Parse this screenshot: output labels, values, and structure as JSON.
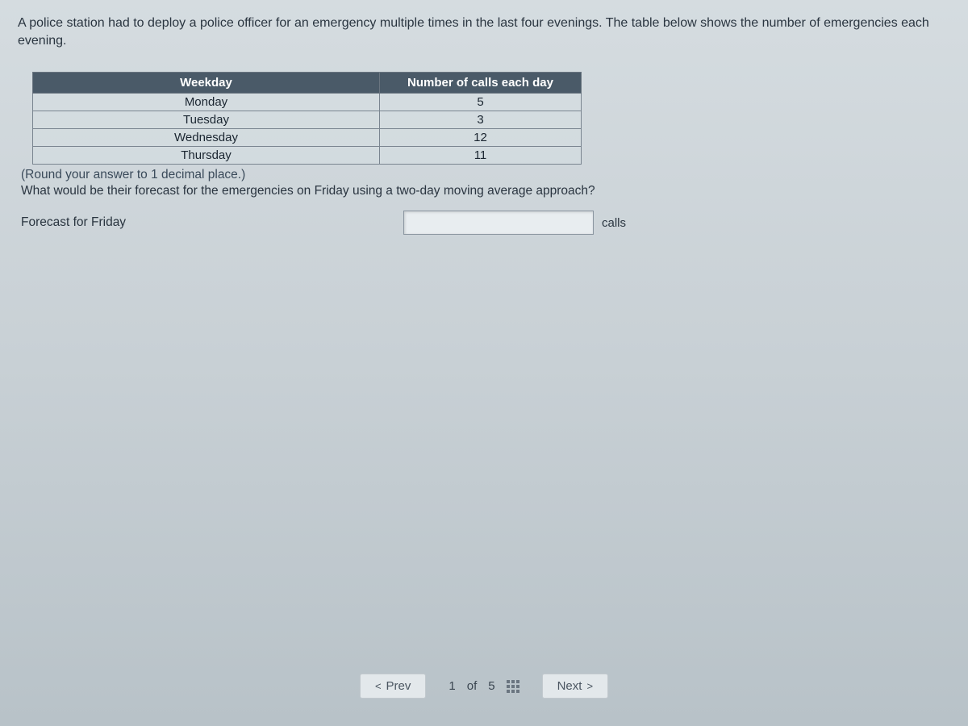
{
  "problem": {
    "intro": "A police station had to deploy a police officer for an emergency multiple times in the last four evenings. The table below shows the number of emergencies each evening."
  },
  "table": {
    "headers": {
      "weekday": "Weekday",
      "calls": "Number of calls each day"
    },
    "rows": [
      {
        "weekday": "Monday",
        "calls": "5"
      },
      {
        "weekday": "Tuesday",
        "calls": "3"
      },
      {
        "weekday": "Wednesday",
        "calls": "12"
      },
      {
        "weekday": "Thursday",
        "calls": "11"
      }
    ]
  },
  "instruction": "(Round your answer to 1 decimal place.)",
  "question": "What would be their forecast for the emergencies on Friday using a two-day moving average approach?",
  "answer": {
    "label": "Forecast for Friday",
    "value": "",
    "unit": "calls"
  },
  "nav": {
    "prev_label": "Prev",
    "current": "1",
    "total": "5",
    "of_word": "of",
    "next_label": "Next"
  },
  "colors": {
    "table_header_bg": "#4a5a68",
    "table_header_text": "#ffffff",
    "text_color": "#2a3540",
    "instruction_color": "#3a4a5a",
    "border_color": "#7a8590"
  }
}
